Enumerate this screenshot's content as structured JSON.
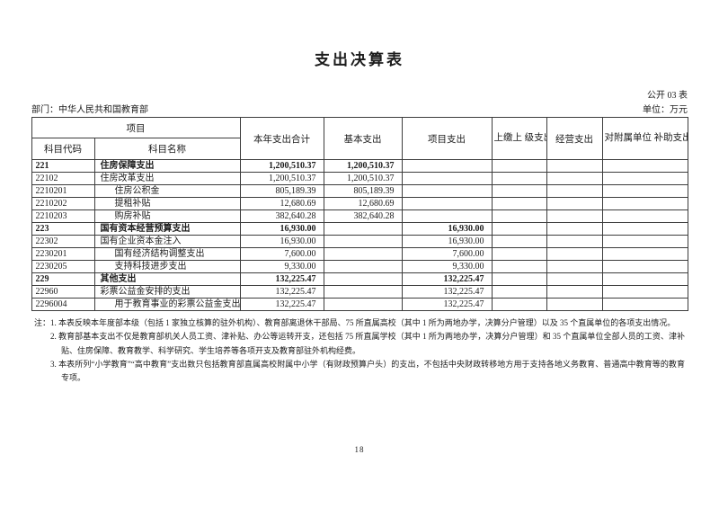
{
  "page": {
    "title": "支出决算表",
    "table_code": "公开 03 表",
    "department_label": "部门：中华人民共和国教育部",
    "unit_label": "单位：万元",
    "page_number": "18"
  },
  "table": {
    "header": {
      "item_group": "项目",
      "code": "科目代码",
      "name": "科目名称",
      "total": "本年支出合计",
      "basic": "基本支出",
      "project": "项目支出",
      "upper": "上缴上\n级支出",
      "operating": "经营支出",
      "subsidy": "对附属单位\n补助支出"
    },
    "rows": [
      {
        "level": 1,
        "code": "221",
        "name": "住房保障支出",
        "total": "1,200,510.37",
        "basic": "1,200,510.37",
        "project": "",
        "upper": "",
        "operating": "",
        "subsidy": ""
      },
      {
        "level": 2,
        "code": "22102",
        "name": "住房改革支出",
        "total": "1,200,510.37",
        "basic": "1,200,510.37",
        "project": "",
        "upper": "",
        "operating": "",
        "subsidy": ""
      },
      {
        "level": 3,
        "code": "2210201",
        "name": "住房公积金",
        "total": "805,189.39",
        "basic": "805,189.39",
        "project": "",
        "upper": "",
        "operating": "",
        "subsidy": ""
      },
      {
        "level": 3,
        "code": "2210202",
        "name": "提租补贴",
        "total": "12,680.69",
        "basic": "12,680.69",
        "project": "",
        "upper": "",
        "operating": "",
        "subsidy": ""
      },
      {
        "level": 3,
        "code": "2210203",
        "name": "购房补贴",
        "total": "382,640.28",
        "basic": "382,640.28",
        "project": "",
        "upper": "",
        "operating": "",
        "subsidy": ""
      },
      {
        "level": 1,
        "code": "223",
        "name": "国有资本经营预算支出",
        "total": "16,930.00",
        "basic": "",
        "project": "16,930.00",
        "upper": "",
        "operating": "",
        "subsidy": ""
      },
      {
        "level": 2,
        "code": "22302",
        "name": "国有企业资本金注入",
        "total": "16,930.00",
        "basic": "",
        "project": "16,930.00",
        "upper": "",
        "operating": "",
        "subsidy": ""
      },
      {
        "level": 3,
        "code": "2230201",
        "name": "国有经济结构调整支出",
        "total": "7,600.00",
        "basic": "",
        "project": "7,600.00",
        "upper": "",
        "operating": "",
        "subsidy": ""
      },
      {
        "level": 3,
        "code": "2230205",
        "name": "支持科技进步支出",
        "total": "9,330.00",
        "basic": "",
        "project": "9,330.00",
        "upper": "",
        "operating": "",
        "subsidy": ""
      },
      {
        "level": 1,
        "code": "229",
        "name": "其他支出",
        "total": "132,225.47",
        "basic": "",
        "project": "132,225.47",
        "upper": "",
        "operating": "",
        "subsidy": ""
      },
      {
        "level": 2,
        "code": "22960",
        "name": "彩票公益金安排的支出",
        "total": "132,225.47",
        "basic": "",
        "project": "132,225.47",
        "upper": "",
        "operating": "",
        "subsidy": ""
      },
      {
        "level": 3,
        "code": "2296004",
        "name": "用于教育事业的彩票公益金支出",
        "total": "132,225.47",
        "basic": "",
        "project": "132,225.47",
        "upper": "",
        "operating": "",
        "subsidy": ""
      }
    ]
  },
  "notes": {
    "prefix": "注：",
    "items": [
      "1. 本表反映本年度部本级（包括 1 家独立核算的驻外机构）、教育部离退休干部局、75 所直属高校（其中 1 所为两地办学，决算分户管理）以及 35 个直属单位的各项支出情况。",
      "2. 教育部基本支出不仅是教育部机关人员工资、津补贴、办公等运转开支，还包括 75 所直属学校（其中 1 所为两地办学，决算分户管理）和 35 个直属单位全部人员的工资、津补贴、住房保障、教育教学、科学研究、学生培养等各项开支及教育部驻外机构经费。",
      "3. 本表所列“小学教育”“高中教育”支出数只包括教育部直属高校附属中小学（有财政预算户头）的支出，不包括中央财政转移地方用于支持各地义务教育、普通高中教育等的教育专项。"
    ]
  }
}
